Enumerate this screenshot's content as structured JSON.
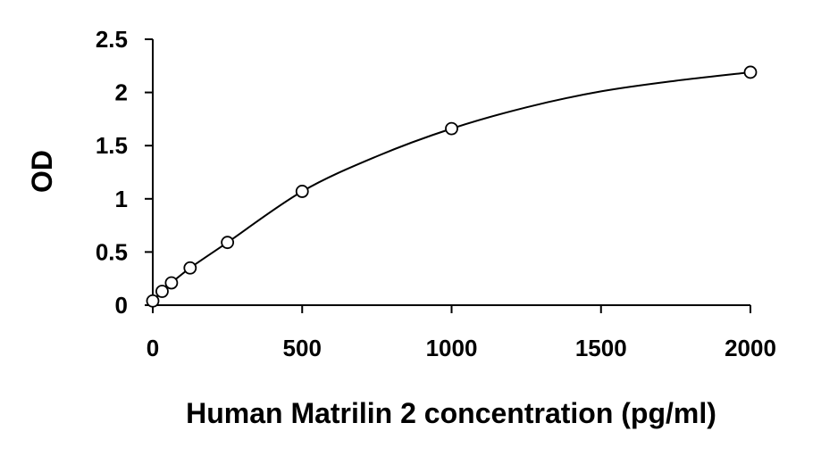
{
  "chart_data": {
    "type": "scatter",
    "title": "",
    "xlabel": "Human Matrilin 2 concentration (pg/ml)",
    "ylabel": "OD",
    "xlim": [
      0,
      2000
    ],
    "ylim": [
      0,
      2.5
    ],
    "x_ticks": [
      0,
      500,
      1000,
      1500,
      2000
    ],
    "x_tick_labels": [
      "0",
      "500",
      "1000",
      "1500",
      "2000"
    ],
    "y_ticks": [
      0,
      0.5,
      1,
      1.5,
      2,
      2.5
    ],
    "y_tick_labels": [
      "0",
      "0.5",
      "1",
      "1.5",
      "2",
      "2.5"
    ],
    "grid": false,
    "legend": "none",
    "series": [
      {
        "marker": "open-circle",
        "x": [
          0,
          31.25,
          62.5,
          125,
          250,
          500,
          1000,
          2000
        ],
        "y": [
          0.04,
          0.13,
          0.21,
          0.35,
          0.59,
          1.07,
          1.66,
          2.19
        ]
      }
    ],
    "fit_curve": {
      "type": "smooth",
      "x": [
        0,
        31.25,
        62.5,
        125,
        250,
        500,
        750,
        1000,
        1250,
        1500,
        1750,
        2000
      ],
      "y": [
        0.04,
        0.13,
        0.21,
        0.35,
        0.59,
        1.07,
        1.4,
        1.66,
        1.86,
        2.01,
        2.11,
        2.19
      ]
    },
    "colors": {
      "line": "#000000",
      "marker_stroke": "#000000",
      "marker_fill": "#ffffff",
      "axis": "#000000"
    }
  }
}
